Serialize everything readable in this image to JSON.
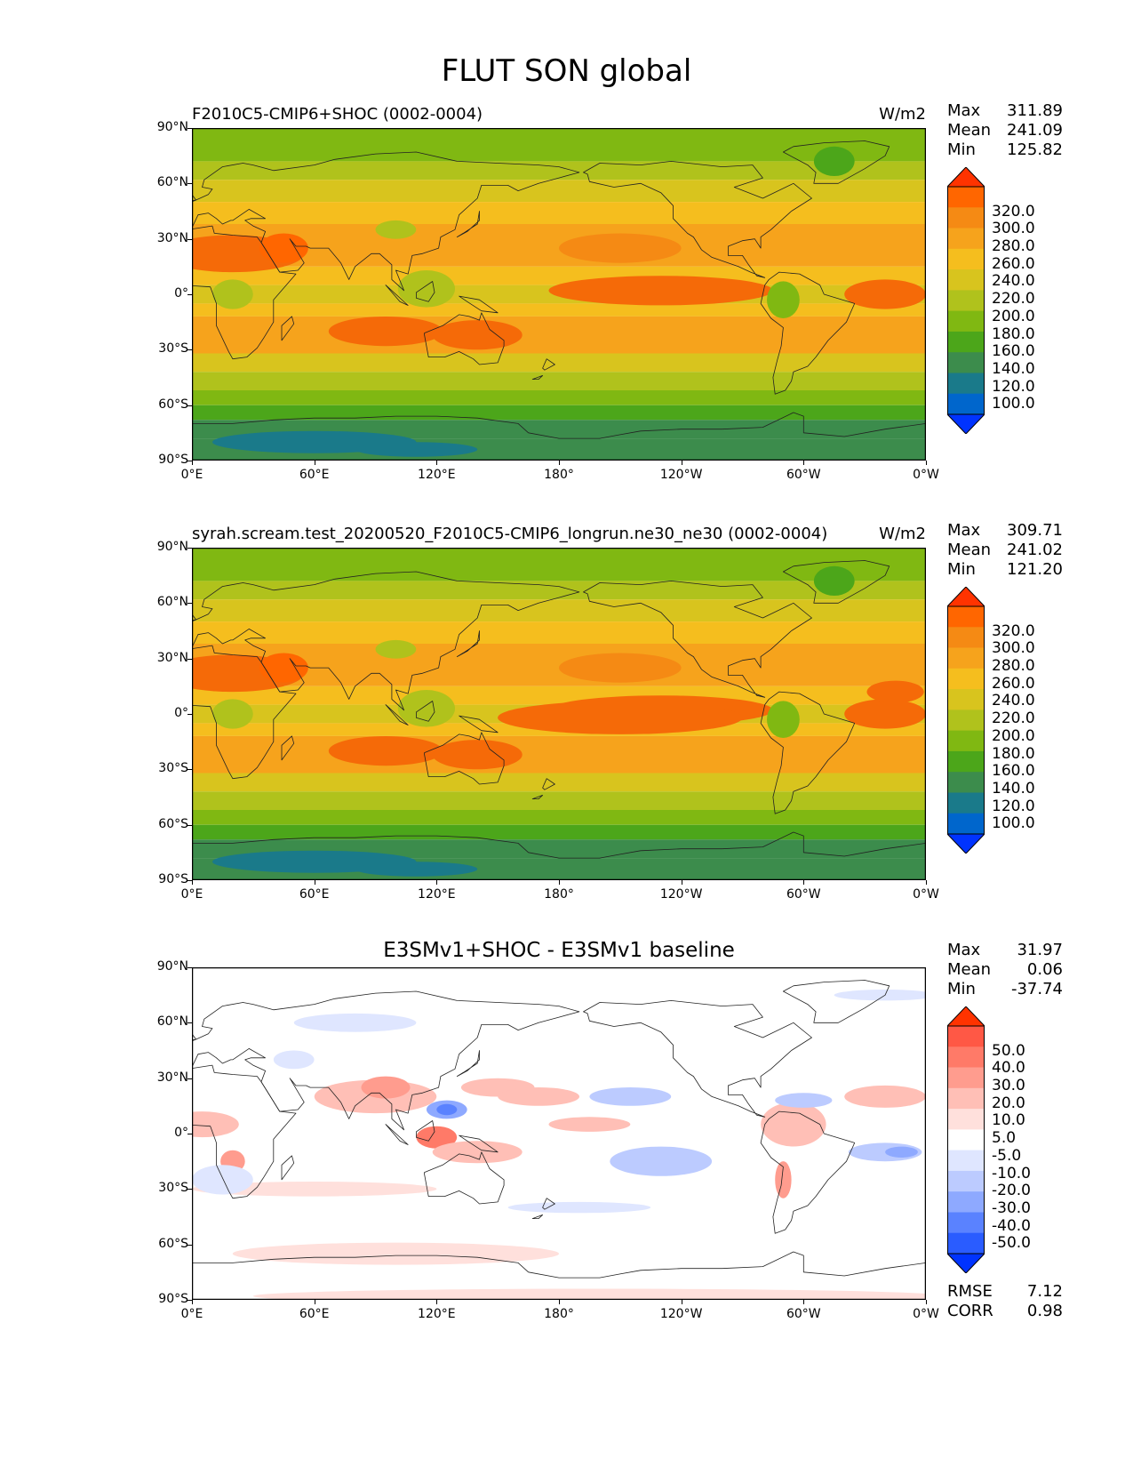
{
  "suptitle": "FLUT SON global",
  "panels": [
    {
      "title_left": "F2010C5-CMIP6+SHOC (0002-0004)",
      "title_right": "W/m2",
      "stats": {
        "max_label": "Max",
        "max": "311.89",
        "mean_label": "Mean",
        "mean": "241.09",
        "min_label": "Min",
        "min": "125.82"
      },
      "colorbar_labels": [
        "320.0",
        "300.0",
        "280.0",
        "260.0",
        "240.0",
        "220.0",
        "200.0",
        "180.0",
        "160.0",
        "140.0",
        "120.0",
        "100.0"
      ]
    },
    {
      "title_left": "syrah.scream.test_20200520_F2010C5-CMIP6_longrun.ne30_ne30 (0002-0004)",
      "title_right": "W/m2",
      "stats": {
        "max_label": "Max",
        "max": "309.71",
        "mean_label": "Mean",
        "mean": "241.02",
        "min_label": "Min",
        "min": "121.20"
      },
      "colorbar_labels": [
        "320.0",
        "300.0",
        "280.0",
        "260.0",
        "240.0",
        "220.0",
        "200.0",
        "180.0",
        "160.0",
        "140.0",
        "120.0",
        "100.0"
      ]
    },
    {
      "title_center": "E3SMv1+SHOC - E3SMv1 baseline",
      "stats": {
        "max_label": "Max",
        "max": "31.97",
        "mean_label": "Mean",
        "mean": "0.06",
        "min_label": "Min",
        "min": "-37.74"
      },
      "colorbar_labels": [
        "50.0",
        "40.0",
        "30.0",
        "20.0",
        "10.0",
        "5.0",
        "-5.0",
        "-10.0",
        "-20.0",
        "-30.0",
        "-40.0",
        "-50.0"
      ],
      "metrics": {
        "rmse_label": "RMSE",
        "rmse": "7.12",
        "corr_label": "CORR",
        "corr": "0.98"
      }
    }
  ],
  "axes": {
    "yticks": [
      "90°N",
      "60°N",
      "30°N",
      "0°",
      "30°S",
      "60°S",
      "90°S"
    ],
    "xticks": [
      "0°E",
      "60°E",
      "120°E",
      "180°",
      "120°W",
      "60°W",
      "0°W"
    ]
  },
  "colors": {
    "abs": [
      "#0033ff",
      "#0066cc",
      "#1a7a8a",
      "#3c8c4c",
      "#4ca61a",
      "#80b812",
      "#b0c21c",
      "#d8c41e",
      "#f5be1e",
      "#f6a31c",
      "#f58a14",
      "#f56a08",
      "#ff6600",
      "#ff3300"
    ],
    "diff": [
      "#0033ff",
      "#2a5cff",
      "#5a82ff",
      "#8ea9ff",
      "#bccbff",
      "#dfe6ff",
      "#ffffff",
      "#ffe0dc",
      "#ffbfb6",
      "#ff9c8e",
      "#ff7a68",
      "#ff5845",
      "#ff3300"
    ]
  },
  "chart_data": [
    {
      "type": "heatmap",
      "title": "F2010C5-CMIP6+SHOC (0002-0004)",
      "units": "W/m2",
      "xlim": [
        0,
        360
      ],
      "ylim": [
        -90,
        90
      ],
      "levels": [
        100,
        120,
        140,
        160,
        180,
        200,
        220,
        240,
        260,
        280,
        300,
        320
      ],
      "stats": {
        "max": 311.89,
        "mean": 241.09,
        "min": 125.82
      },
      "zonal_profile": {
        "lat": [
          90,
          75,
          60,
          45,
          30,
          15,
          0,
          -15,
          -30,
          -45,
          -60,
          -75,
          -90
        ],
        "value": [
          190,
          200,
          215,
          235,
          265,
          265,
          245,
          260,
          250,
          225,
          205,
          165,
          140
        ]
      }
    },
    {
      "type": "heatmap",
      "title": "syrah.scream.test_20200520_F2010C5-CMIP6_longrun.ne30_ne30 (0002-0004)",
      "units": "W/m2",
      "xlim": [
        0,
        360
      ],
      "ylim": [
        -90,
        90
      ],
      "levels": [
        100,
        120,
        140,
        160,
        180,
        200,
        220,
        240,
        260,
        280,
        300,
        320
      ],
      "stats": {
        "max": 309.71,
        "mean": 241.02,
        "min": 121.2
      },
      "zonal_profile": {
        "lat": [
          90,
          75,
          60,
          45,
          30,
          15,
          0,
          -15,
          -30,
          -45,
          -60,
          -75,
          -90
        ],
        "value": [
          190,
          200,
          215,
          235,
          265,
          265,
          245,
          262,
          252,
          225,
          205,
          163,
          138
        ]
      }
    },
    {
      "type": "heatmap",
      "title": "E3SMv1+SHOC - E3SMv1 baseline",
      "xlim": [
        0,
        360
      ],
      "ylim": [
        -90,
        90
      ],
      "levels": [
        -50,
        -40,
        -30,
        -20,
        -10,
        -5,
        5,
        10,
        20,
        30,
        40,
        50
      ],
      "stats": {
        "max": 31.97,
        "mean": 0.06,
        "min": -37.74
      },
      "rmse": 7.12,
      "corr": 0.98
    }
  ]
}
